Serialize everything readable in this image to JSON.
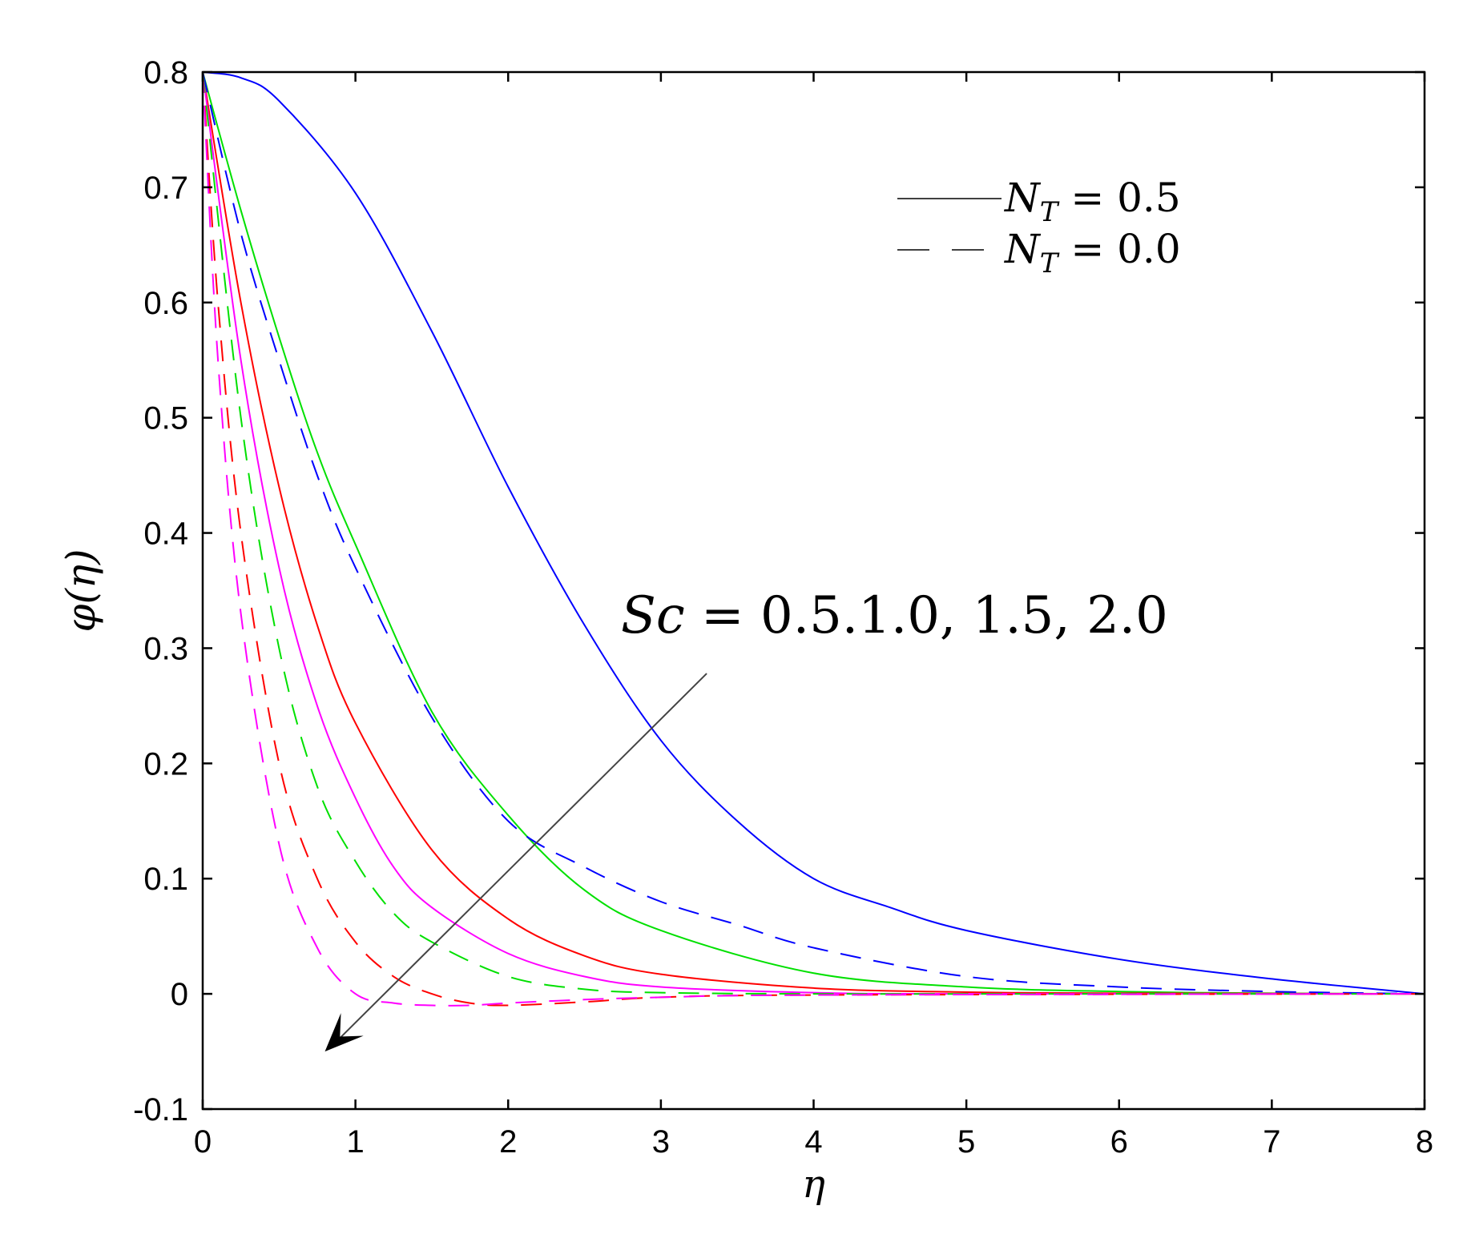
{
  "chart_data": {
    "type": "line",
    "title": "",
    "xlabel": "η",
    "ylabel": "φ(η)",
    "xlim": [
      0,
      8
    ],
    "ylim": [
      -0.1,
      0.8
    ],
    "x_ticks": [
      0,
      1,
      2,
      3,
      4,
      5,
      6,
      7,
      8
    ],
    "x_tick_labels": [
      "0",
      "1",
      "2",
      "3",
      "4",
      "5",
      "6",
      "7",
      "8"
    ],
    "y_ticks": [
      -0.1,
      0,
      0.1,
      0.2,
      0.3,
      0.4,
      0.5,
      0.6,
      0.7,
      0.8
    ],
    "y_tick_labels": [
      "-0.1",
      "0",
      "0.1",
      "0.2",
      "0.3",
      "0.4",
      "0.5",
      "0.6",
      "0.7",
      "0.8"
    ],
    "grid": false,
    "legend": {
      "position": "top-right",
      "entries": [
        {
          "style": "solid",
          "label_main": "N",
          "label_sub": "T",
          "label_rest": " = 0.5"
        },
        {
          "style": "dashed",
          "label_main": "N",
          "label_sub": "T",
          "label_rest": " = 0.0"
        }
      ]
    },
    "annotation": {
      "text_italic": "Sc",
      "text_rest": " = 0.5.1.0, 1.5, 2.0",
      "arrow_from": [
        3.3,
        0.278
      ],
      "arrow_to": [
        0.8,
        -0.05
      ]
    },
    "series": [
      {
        "color": "#0000ff",
        "style": "solid",
        "x": [
          0,
          0.25,
          0.5,
          1,
          1.5,
          2,
          2.5,
          3,
          3.5,
          4,
          4.5,
          5,
          6,
          7,
          8
        ],
        "y": [
          0.8,
          0.795,
          0.775,
          0.695,
          0.575,
          0.44,
          0.32,
          0.22,
          0.15,
          0.1,
          0.075,
          0.055,
          0.03,
          0.013,
          0.0
        ]
      },
      {
        "color": "#00e000",
        "style": "solid",
        "x": [
          0,
          0.25,
          0.5,
          0.75,
          1,
          1.5,
          2,
          2.5,
          3,
          4,
          5,
          6,
          7,
          8
        ],
        "y": [
          0.8,
          0.68,
          0.57,
          0.47,
          0.39,
          0.245,
          0.155,
          0.09,
          0.055,
          0.018,
          0.006,
          0.002,
          0.0005,
          0.0
        ]
      },
      {
        "color": "#ff0000",
        "style": "solid",
        "x": [
          0,
          0.25,
          0.5,
          0.75,
          1,
          1.5,
          2,
          2.5,
          3,
          4,
          5,
          6,
          8
        ],
        "y": [
          0.8,
          0.6,
          0.44,
          0.32,
          0.235,
          0.125,
          0.065,
          0.033,
          0.017,
          0.005,
          0.0015,
          0.0005,
          0.0
        ]
      },
      {
        "color": "#ff00ff",
        "style": "solid",
        "x": [
          0,
          0.25,
          0.5,
          0.75,
          1,
          1.25,
          1.5,
          2,
          2.5,
          3,
          4,
          5,
          8
        ],
        "y": [
          0.8,
          0.55,
          0.37,
          0.25,
          0.17,
          0.11,
          0.075,
          0.035,
          0.015,
          0.006,
          0.001,
          0.0,
          0.0
        ]
      },
      {
        "color": "#0000ff",
        "style": "dashed",
        "x": [
          0,
          0.25,
          0.5,
          0.75,
          1,
          1.5,
          2,
          2.5,
          3,
          3.5,
          4,
          5,
          6,
          7,
          8
        ],
        "y": [
          0.8,
          0.66,
          0.55,
          0.45,
          0.37,
          0.24,
          0.15,
          0.11,
          0.08,
          0.06,
          0.04,
          0.015,
          0.006,
          0.002,
          0.0
        ]
      },
      {
        "color": "#00e000",
        "style": "dashed",
        "x": [
          0,
          0.25,
          0.5,
          0.75,
          1,
          1.25,
          1.5,
          2,
          2.5,
          3,
          4,
          6,
          8
        ],
        "y": [
          0.8,
          0.5,
          0.3,
          0.18,
          0.115,
          0.07,
          0.045,
          0.015,
          0.004,
          0.001,
          0.0,
          0.0,
          0.0
        ]
      },
      {
        "color": "#ff0000",
        "style": "dashed",
        "x": [
          0,
          0.1,
          0.25,
          0.5,
          0.75,
          1,
          1.25,
          1.5,
          1.75,
          2,
          2.5,
          3,
          4,
          8
        ],
        "y": [
          0.8,
          0.6,
          0.4,
          0.2,
          0.1,
          0.045,
          0.015,
          0.0,
          -0.008,
          -0.01,
          -0.007,
          -0.003,
          -0.001,
          0.0
        ]
      },
      {
        "color": "#ff00ff",
        "style": "dashed",
        "x": [
          0,
          0.1,
          0.25,
          0.5,
          0.75,
          1,
          1.25,
          1.5,
          1.75,
          2,
          2.5,
          3,
          4,
          8
        ],
        "y": [
          0.8,
          0.55,
          0.33,
          0.13,
          0.04,
          0.0,
          -0.008,
          -0.01,
          -0.01,
          -0.008,
          -0.005,
          -0.003,
          -0.001,
          0.0
        ]
      }
    ]
  }
}
